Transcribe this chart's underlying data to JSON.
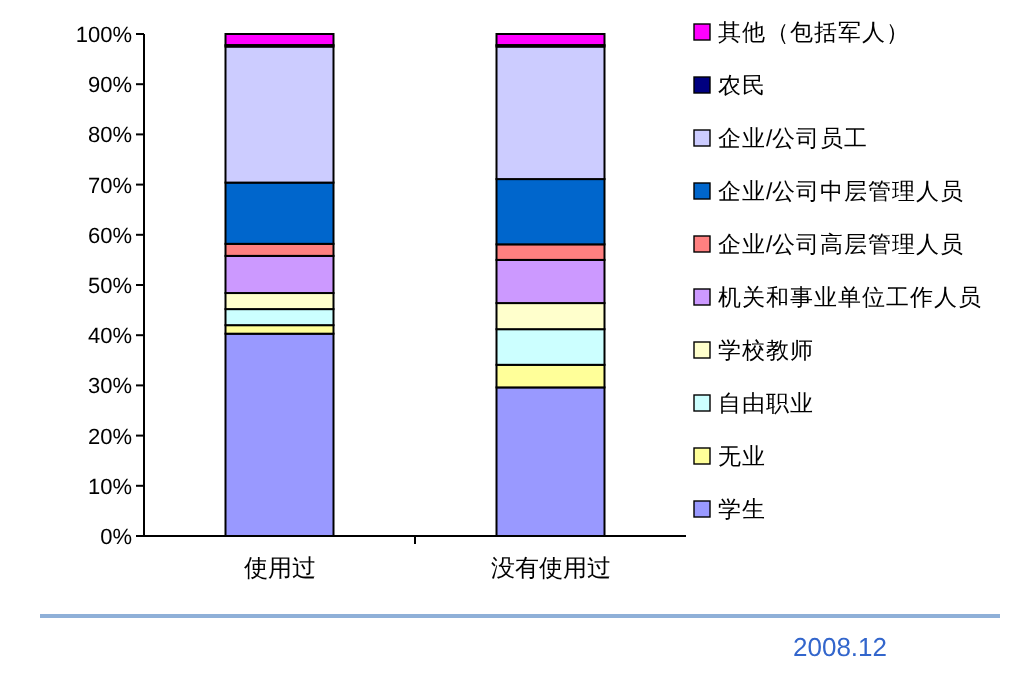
{
  "chart_data": {
    "type": "bar",
    "stacked": true,
    "categories": [
      "使用过",
      "没有使用过"
    ],
    "series": [
      {
        "name": "学生",
        "color": "#9999ff",
        "values": [
          40.3,
          29.6
        ]
      },
      {
        "name": "无业",
        "color": "#ffff99",
        "values": [
          1.7,
          4.5
        ]
      },
      {
        "name": "自由职业",
        "color": "#ccffff",
        "values": [
          3.2,
          7.1
        ]
      },
      {
        "name": "学校教师",
        "color": "#ffffcc",
        "values": [
          3.2,
          5.2
        ]
      },
      {
        "name": "机关和事业单位工作人员",
        "color": "#cc99ff",
        "values": [
          7.4,
          8.6
        ]
      },
      {
        "name": "企业/公司高层管理人员",
        "color": "#ff8080",
        "values": [
          2.4,
          3.1
        ]
      },
      {
        "name": "企业/公司中层管理人员",
        "color": "#0066cc",
        "values": [
          12.2,
          13.0
        ]
      },
      {
        "name": "企业/公司员工",
        "color": "#ccccff",
        "values": [
          27.1,
          26.4
        ]
      },
      {
        "name": "农民",
        "color": "#000080",
        "values": [
          0.3,
          0.3
        ]
      },
      {
        "name": "其他（包括军人）",
        "color": "#ff00ff",
        "values": [
          2.2,
          2.2
        ]
      }
    ],
    "ylim": [
      0,
      100
    ],
    "yticks": [
      {
        "value": 0,
        "label": "0%"
      },
      {
        "value": 10,
        "label": "10%"
      },
      {
        "value": 20,
        "label": "20%"
      },
      {
        "value": 30,
        "label": "30%"
      },
      {
        "value": 40,
        "label": "40%"
      },
      {
        "value": 50,
        "label": "50%"
      },
      {
        "value": 60,
        "label": "60%"
      },
      {
        "value": 70,
        "label": "70%"
      },
      {
        "value": 80,
        "label": "80%"
      },
      {
        "value": 90,
        "label": "90%"
      },
      {
        "value": 100,
        "label": "100%"
      }
    ],
    "grid": false,
    "legend": "right",
    "annotations": [
      "2008.12"
    ]
  }
}
